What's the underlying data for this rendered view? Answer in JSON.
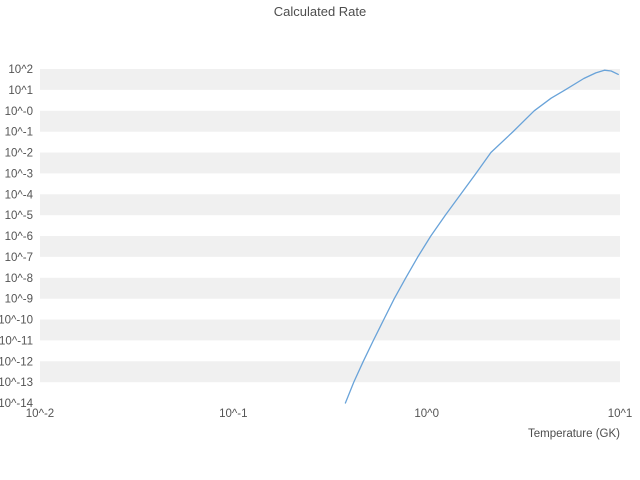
{
  "chart_data": {
    "type": "line",
    "title": "Calculated Rate",
    "xlabel": "Temperature (GK)",
    "ylabel": "",
    "x_scale": "log",
    "y_scale": "log",
    "xlim": [
      0.01,
      10
    ],
    "ylim": [
      1e-14,
      100
    ],
    "grid": "striped-horizontal-bands",
    "legend": "none",
    "x_tick_labels": [
      "10^-2",
      "10^-1",
      "10^0",
      "10^1"
    ],
    "x_tick_values": [
      0.01,
      0.1,
      1,
      10
    ],
    "y_tick_labels": [
      "10^2",
      "10^1",
      "10^-0",
      "10^-1",
      "10^-2",
      "10^-3",
      "10^-4",
      "10^-5",
      "10^-6",
      "10^-7",
      "10^-8",
      "10^-9",
      "10^-10",
      "10^-11",
      "10^-12",
      "10^-13",
      "10^-14"
    ],
    "y_tick_values": [
      100,
      10,
      1,
      0.1,
      0.01,
      0.001,
      0.0001,
      1e-05,
      1e-06,
      1e-07,
      1e-08,
      1e-09,
      1e-10,
      1e-11,
      1e-12,
      1e-13,
      1e-14
    ],
    "line_color": "#69a3d9",
    "band_color": "#f0f0f0",
    "series": [
      {
        "name": "calculated rate",
        "x": [
          0.38,
          0.42,
          0.47,
          0.53,
          0.6,
          0.68,
          0.78,
          0.9,
          1.05,
          1.25,
          1.5,
          1.8,
          2.15,
          2.8,
          3.6,
          4.4,
          5.2,
          6.5,
          7.5,
          8.3,
          9.0,
          9.8
        ],
        "y": [
          1e-14,
          1e-13,
          1e-12,
          1e-11,
          1e-10,
          1e-09,
          1e-08,
          1e-07,
          1e-06,
          1e-05,
          0.0001,
          0.001,
          0.01,
          0.1,
          1.0,
          4.0,
          10,
          35,
          65,
          88,
          80,
          55
        ]
      }
    ]
  }
}
